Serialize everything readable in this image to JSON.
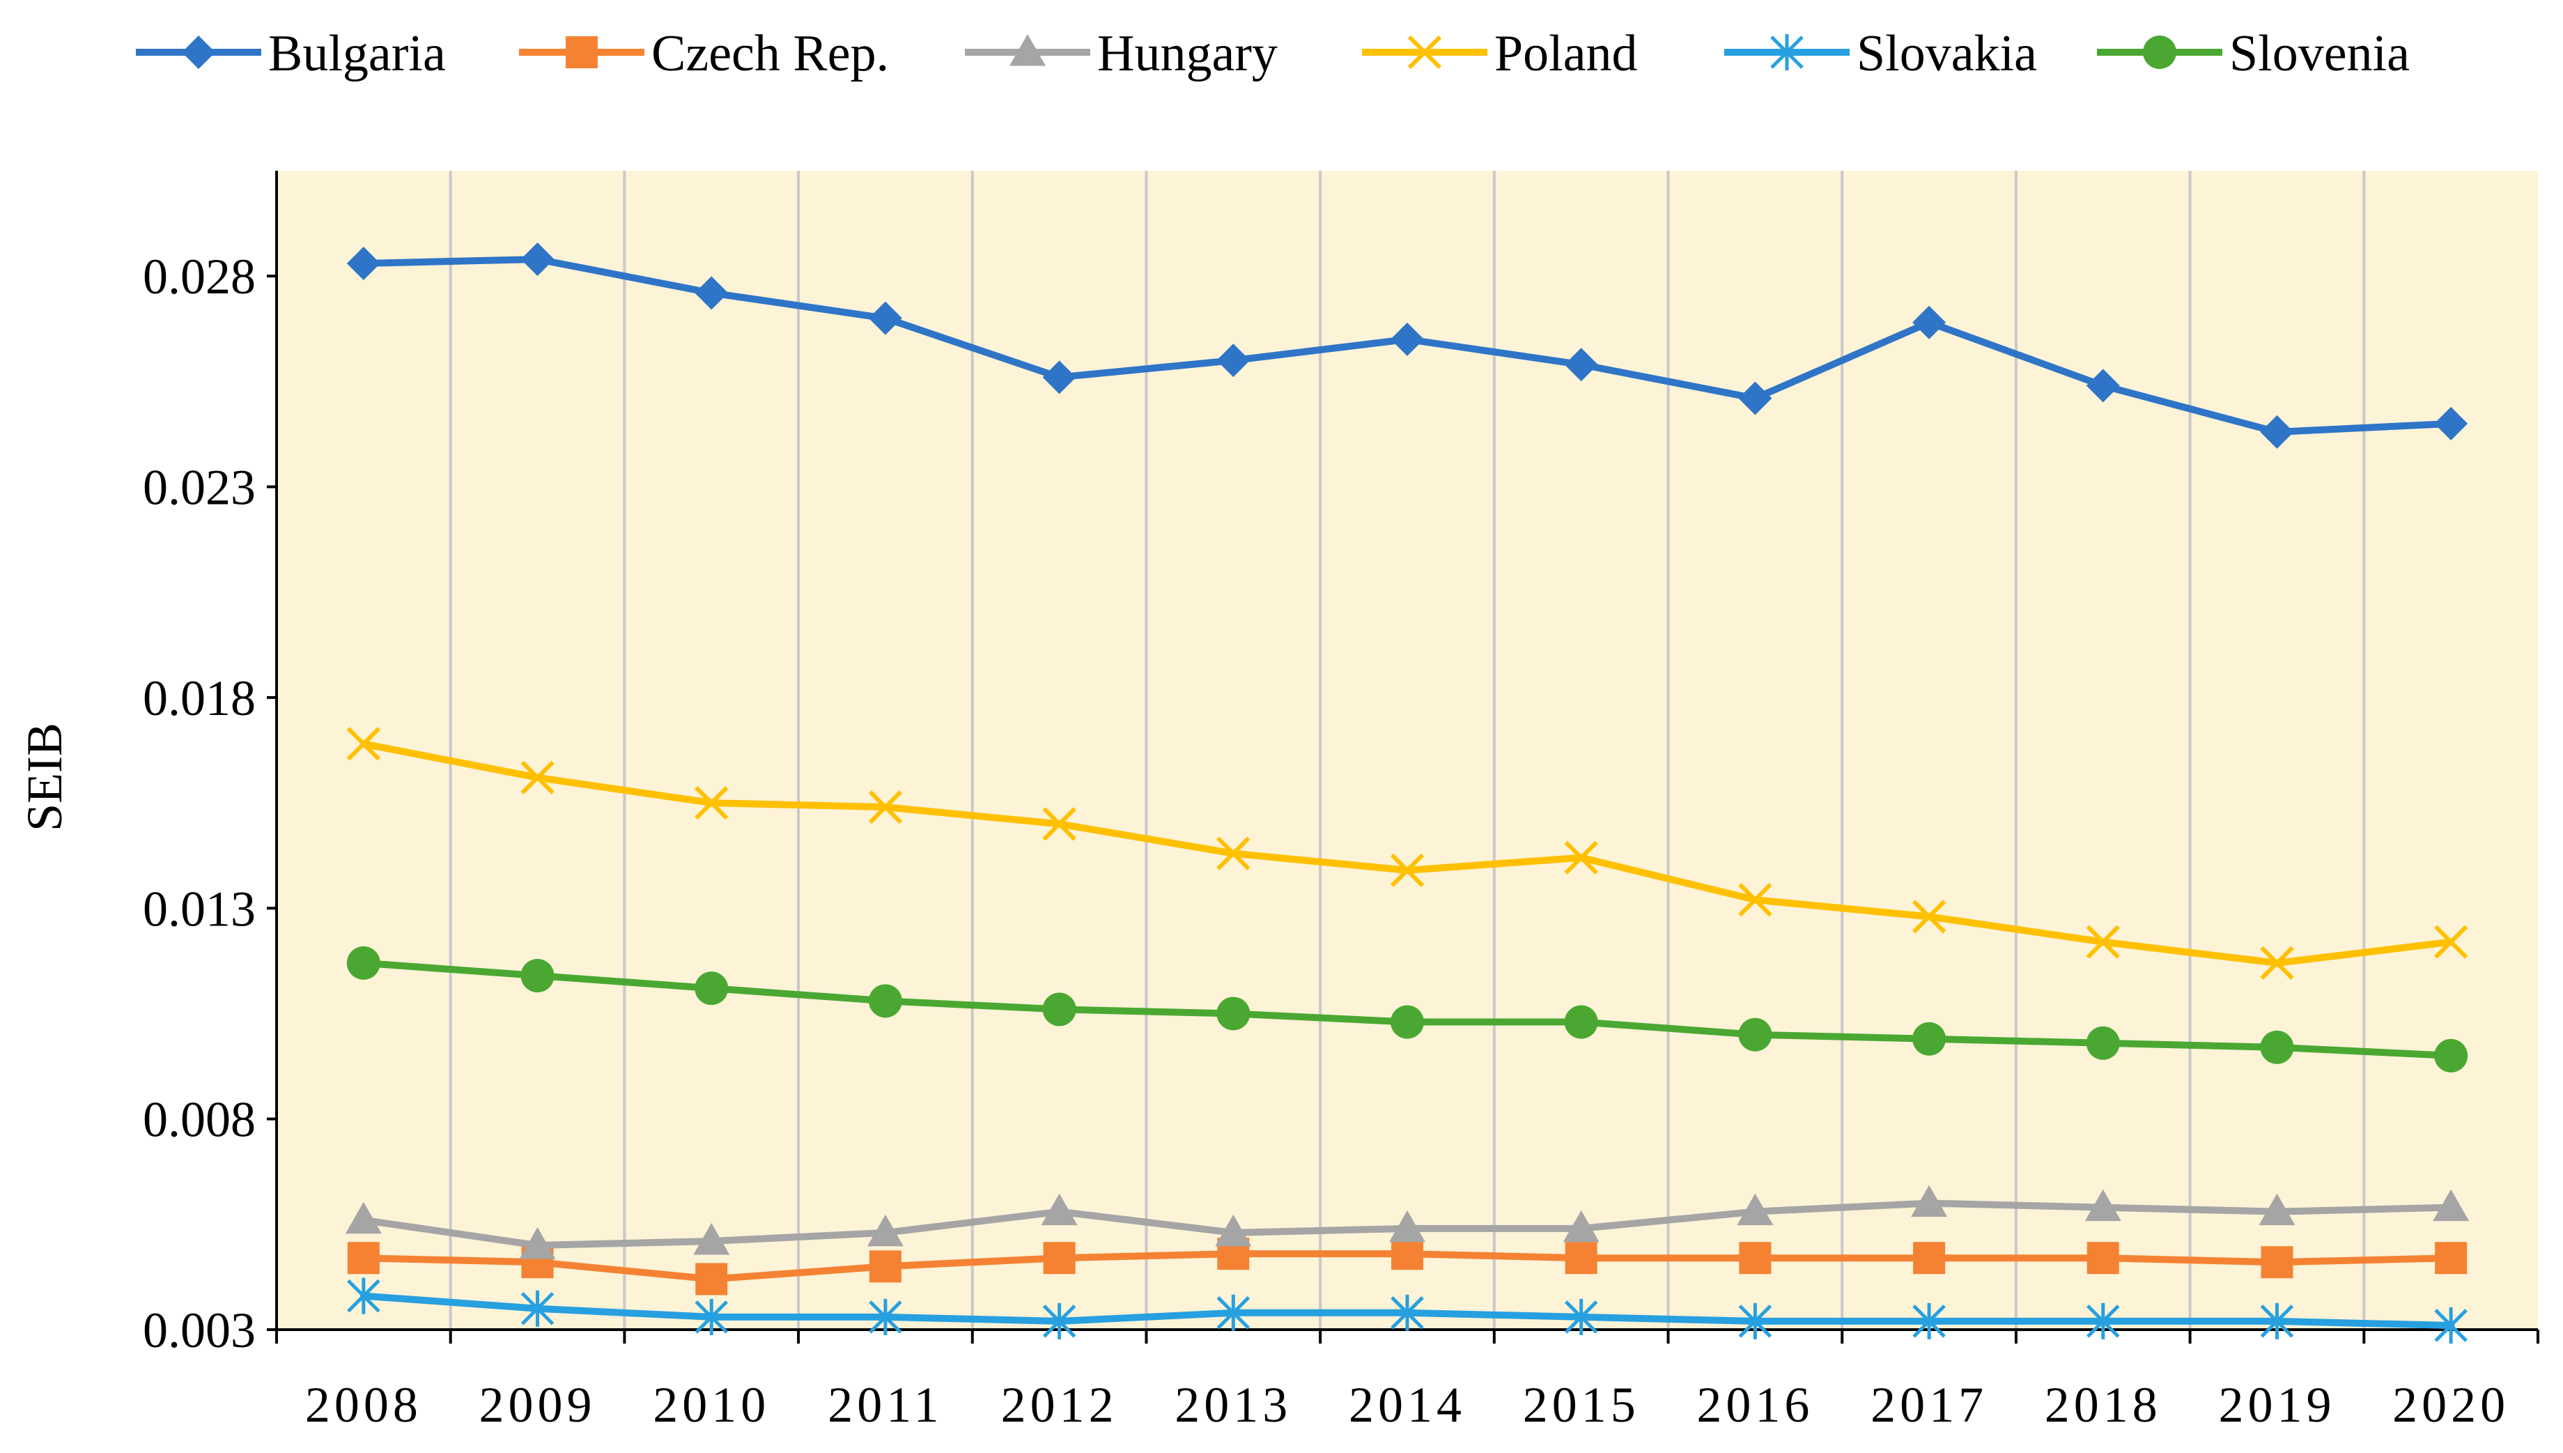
{
  "chart_data": {
    "type": "line",
    "title": "",
    "xlabel": "",
    "ylabel": "SEIB",
    "categories": [
      "2008",
      "2009",
      "2010",
      "2011",
      "2012",
      "2013",
      "2014",
      "2015",
      "2016",
      "2017",
      "2018",
      "2019",
      "2020"
    ],
    "ylim": [
      0.003,
      0.0305
    ],
    "yticks": [
      "0.003",
      "0.008",
      "0.013",
      "0.018",
      "0.023",
      "0.028"
    ],
    "grid": "vertical",
    "legend_position": "top",
    "plot_background": "#fdf3d7",
    "series": [
      {
        "name": "Bulgaria",
        "color": "#2e75c7",
        "marker": "diamond",
        "values": [
          0.0283,
          0.0284,
          0.0276,
          0.027,
          0.0256,
          0.026,
          0.0265,
          0.0259,
          0.0251,
          0.0269,
          0.0254,
          0.0243,
          0.0245
        ]
      },
      {
        "name": "Czech Rep.",
        "color": "#f58232",
        "marker": "square",
        "values": [
          0.0047,
          0.0046,
          0.0042,
          0.0045,
          0.0047,
          0.0048,
          0.0048,
          0.0047,
          0.0047,
          0.0047,
          0.0047,
          0.0046,
          0.0047
        ]
      },
      {
        "name": "Hungary",
        "color": "#a5a5a5",
        "marker": "triangle",
        "values": [
          0.0056,
          0.005,
          0.0051,
          0.0053,
          0.0058,
          0.0053,
          0.0054,
          0.0054,
          0.0058,
          0.006,
          0.0059,
          0.0058,
          0.0059
        ]
      },
      {
        "name": "Poland",
        "color": "#ffc000",
        "marker": "x",
        "values": [
          0.0169,
          0.0161,
          0.0155,
          0.0154,
          0.015,
          0.0143,
          0.0139,
          0.0142,
          0.0132,
          0.0128,
          0.0122,
          0.0117,
          0.0122
        ]
      },
      {
        "name": "Slovakia",
        "color": "#27a0e0",
        "marker": "asterisk",
        "values": [
          0.0038,
          0.0035,
          0.0033,
          0.0033,
          0.0032,
          0.0034,
          0.0034,
          0.0033,
          0.0032,
          0.0032,
          0.0032,
          0.0032,
          0.0031
        ]
      },
      {
        "name": "Slovenia",
        "color": "#4aa832",
        "marker": "circle",
        "values": [
          0.0117,
          0.0114,
          0.0111,
          0.0108,
          0.0106,
          0.0105,
          0.0103,
          0.0103,
          0.01,
          0.0099,
          0.0098,
          0.0097,
          0.0095
        ]
      }
    ]
  }
}
